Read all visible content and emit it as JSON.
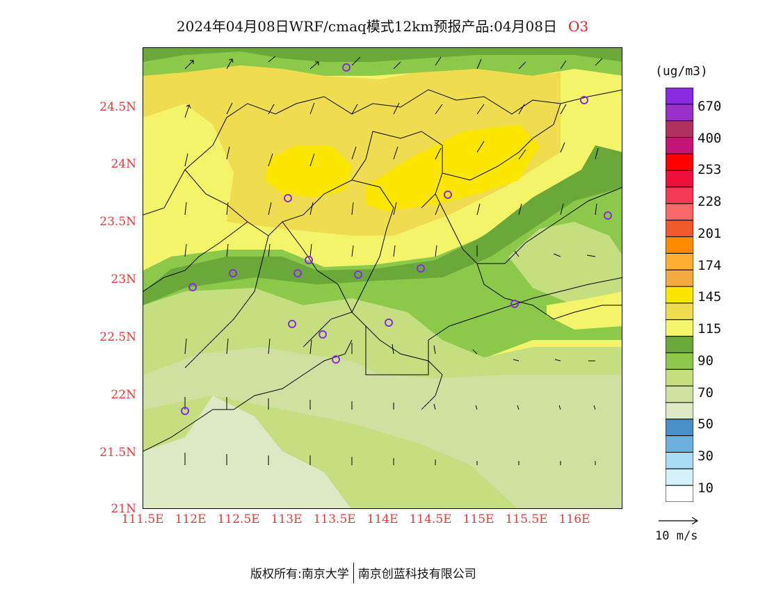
{
  "header": {
    "title": "2024年04月08日WRF/cmaq模式12km预报产品:04月08日",
    "species": "O3"
  },
  "axes": {
    "lat_labels": [
      "24.5N",
      "24N",
      "23.5N",
      "23N",
      "22.5N",
      "22N",
      "21.5N",
      "21N"
    ],
    "lon_labels": [
      "111.5E",
      "112E",
      "112.5E",
      "113E",
      "113.5E",
      "114E",
      "114.5E",
      "115E",
      "115.5E",
      "116E"
    ]
  },
  "legend": {
    "units": "(ug/m3)",
    "labels": [
      "670",
      "400",
      "253",
      "228",
      "201",
      "174",
      "145",
      "115",
      "90",
      "70",
      "50",
      "30",
      "10"
    ],
    "colors": [
      "#8a2be2",
      "#9a30c8",
      "#b03060",
      "#c41478",
      "#ff0000",
      "#f0103a",
      "#f43a55",
      "#f86868",
      "#f05a2a",
      "#ff8c00",
      "#ffb030",
      "#f8a840",
      "#fbe600",
      "#f0dc50",
      "#f3f46a",
      "#6ba83a",
      "#8cc84a",
      "#c4de80",
      "#cfe0a0",
      "#dde8c4",
      "#4a90c8",
      "#6cb0e0",
      "#a8dcf5",
      "#d4f0fa",
      "#ffffff"
    ],
    "wind_reference": "10 m/s"
  },
  "map": {
    "field_colors": {
      "band_115": "#f3f46a",
      "band_130": "#f0dc50",
      "band_145": "#fbe600",
      "band_90": "#6ba83a",
      "band_80": "#8cc84a",
      "band_70": "#c4de80",
      "band_60": "#cfe0a0",
      "band_50": "#dde8c4"
    },
    "stations": 22
  },
  "footer": {
    "left": "版权所有:南京大学",
    "right": "南京创蓝科技有限公司"
  }
}
